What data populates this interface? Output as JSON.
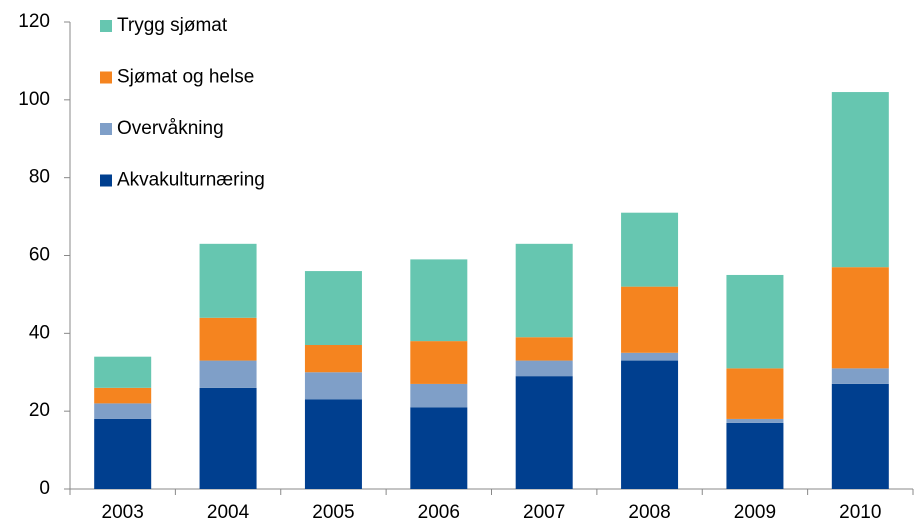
{
  "chart_data": {
    "type": "stacked_bar",
    "categories": [
      "2003",
      "2004",
      "2005",
      "2006",
      "2007",
      "2008",
      "2009",
      "2010"
    ],
    "series": [
      {
        "name": "Akvakulturnæring",
        "color": "#003f8f",
        "values": [
          18,
          26,
          23,
          21,
          29,
          33,
          17,
          27
        ]
      },
      {
        "name": "Overvåkning",
        "color": "#7f9fc8",
        "values": [
          4,
          7,
          7,
          6,
          4,
          2,
          1,
          4
        ]
      },
      {
        "name": "Sjømat og helse",
        "color": "#f5841f",
        "values": [
          4,
          11,
          7,
          11,
          6,
          17,
          13,
          26
        ]
      },
      {
        "name": "Trygg sjømat",
        "color": "#66c6b0",
        "values": [
          8,
          19,
          19,
          21,
          24,
          19,
          24,
          45
        ]
      }
    ],
    "ylim": [
      0,
      120
    ],
    "yticks": [
      0,
      20,
      40,
      60,
      80,
      100,
      120
    ],
    "grid": false,
    "legend": "top-left"
  }
}
